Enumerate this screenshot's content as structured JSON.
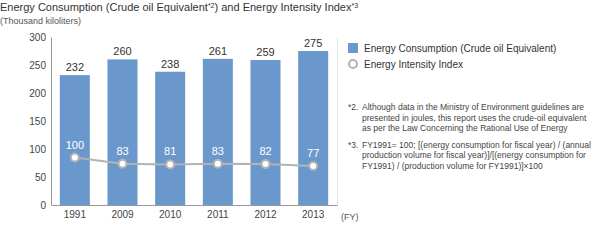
{
  "chart_data": {
    "type": "bar",
    "title": "Energy Consumption (Crude oil Equivalent*2) and Energy Intensity Index*3",
    "y_label": "(Thousand kiloliters)",
    "x_label": "(FY)",
    "categories": [
      "1991",
      "2009",
      "2010",
      "2011",
      "2012",
      "2013"
    ],
    "series": [
      {
        "name": "Energy Consumption (Crude oil Equivalent)",
        "type": "bar",
        "color": "#6b98cc",
        "values": [
          232,
          260,
          238,
          261,
          259,
          275
        ]
      },
      {
        "name": "Energy Intensity Index",
        "type": "line",
        "color": "#b3b3b3",
        "marker": "circle",
        "axis": "y2",
        "values": [
          100,
          83,
          81,
          83,
          82,
          77
        ]
      }
    ],
    "ylim": [
      0,
      300
    ],
    "yticks": [
      0,
      50,
      100,
      150,
      200,
      250,
      300
    ],
    "y2lim": [
      -30,
      430
    ],
    "y2ticks": [],
    "grid": false,
    "legend": "right",
    "data_labels": true,
    "annotations": [
      "*2. Although data in the Ministry of Environment guidelines are presented in joules, this report uses the crude-oil equivalent as per the Law Concerning the Rational Use of Energy",
      "*3. FY1991= 100; [(energy consumption for fiscal year) / (annual production volume for fiscal year)]/[(energy consumption for FY1991) / (production volume for FY1991)]×100"
    ]
  }
}
